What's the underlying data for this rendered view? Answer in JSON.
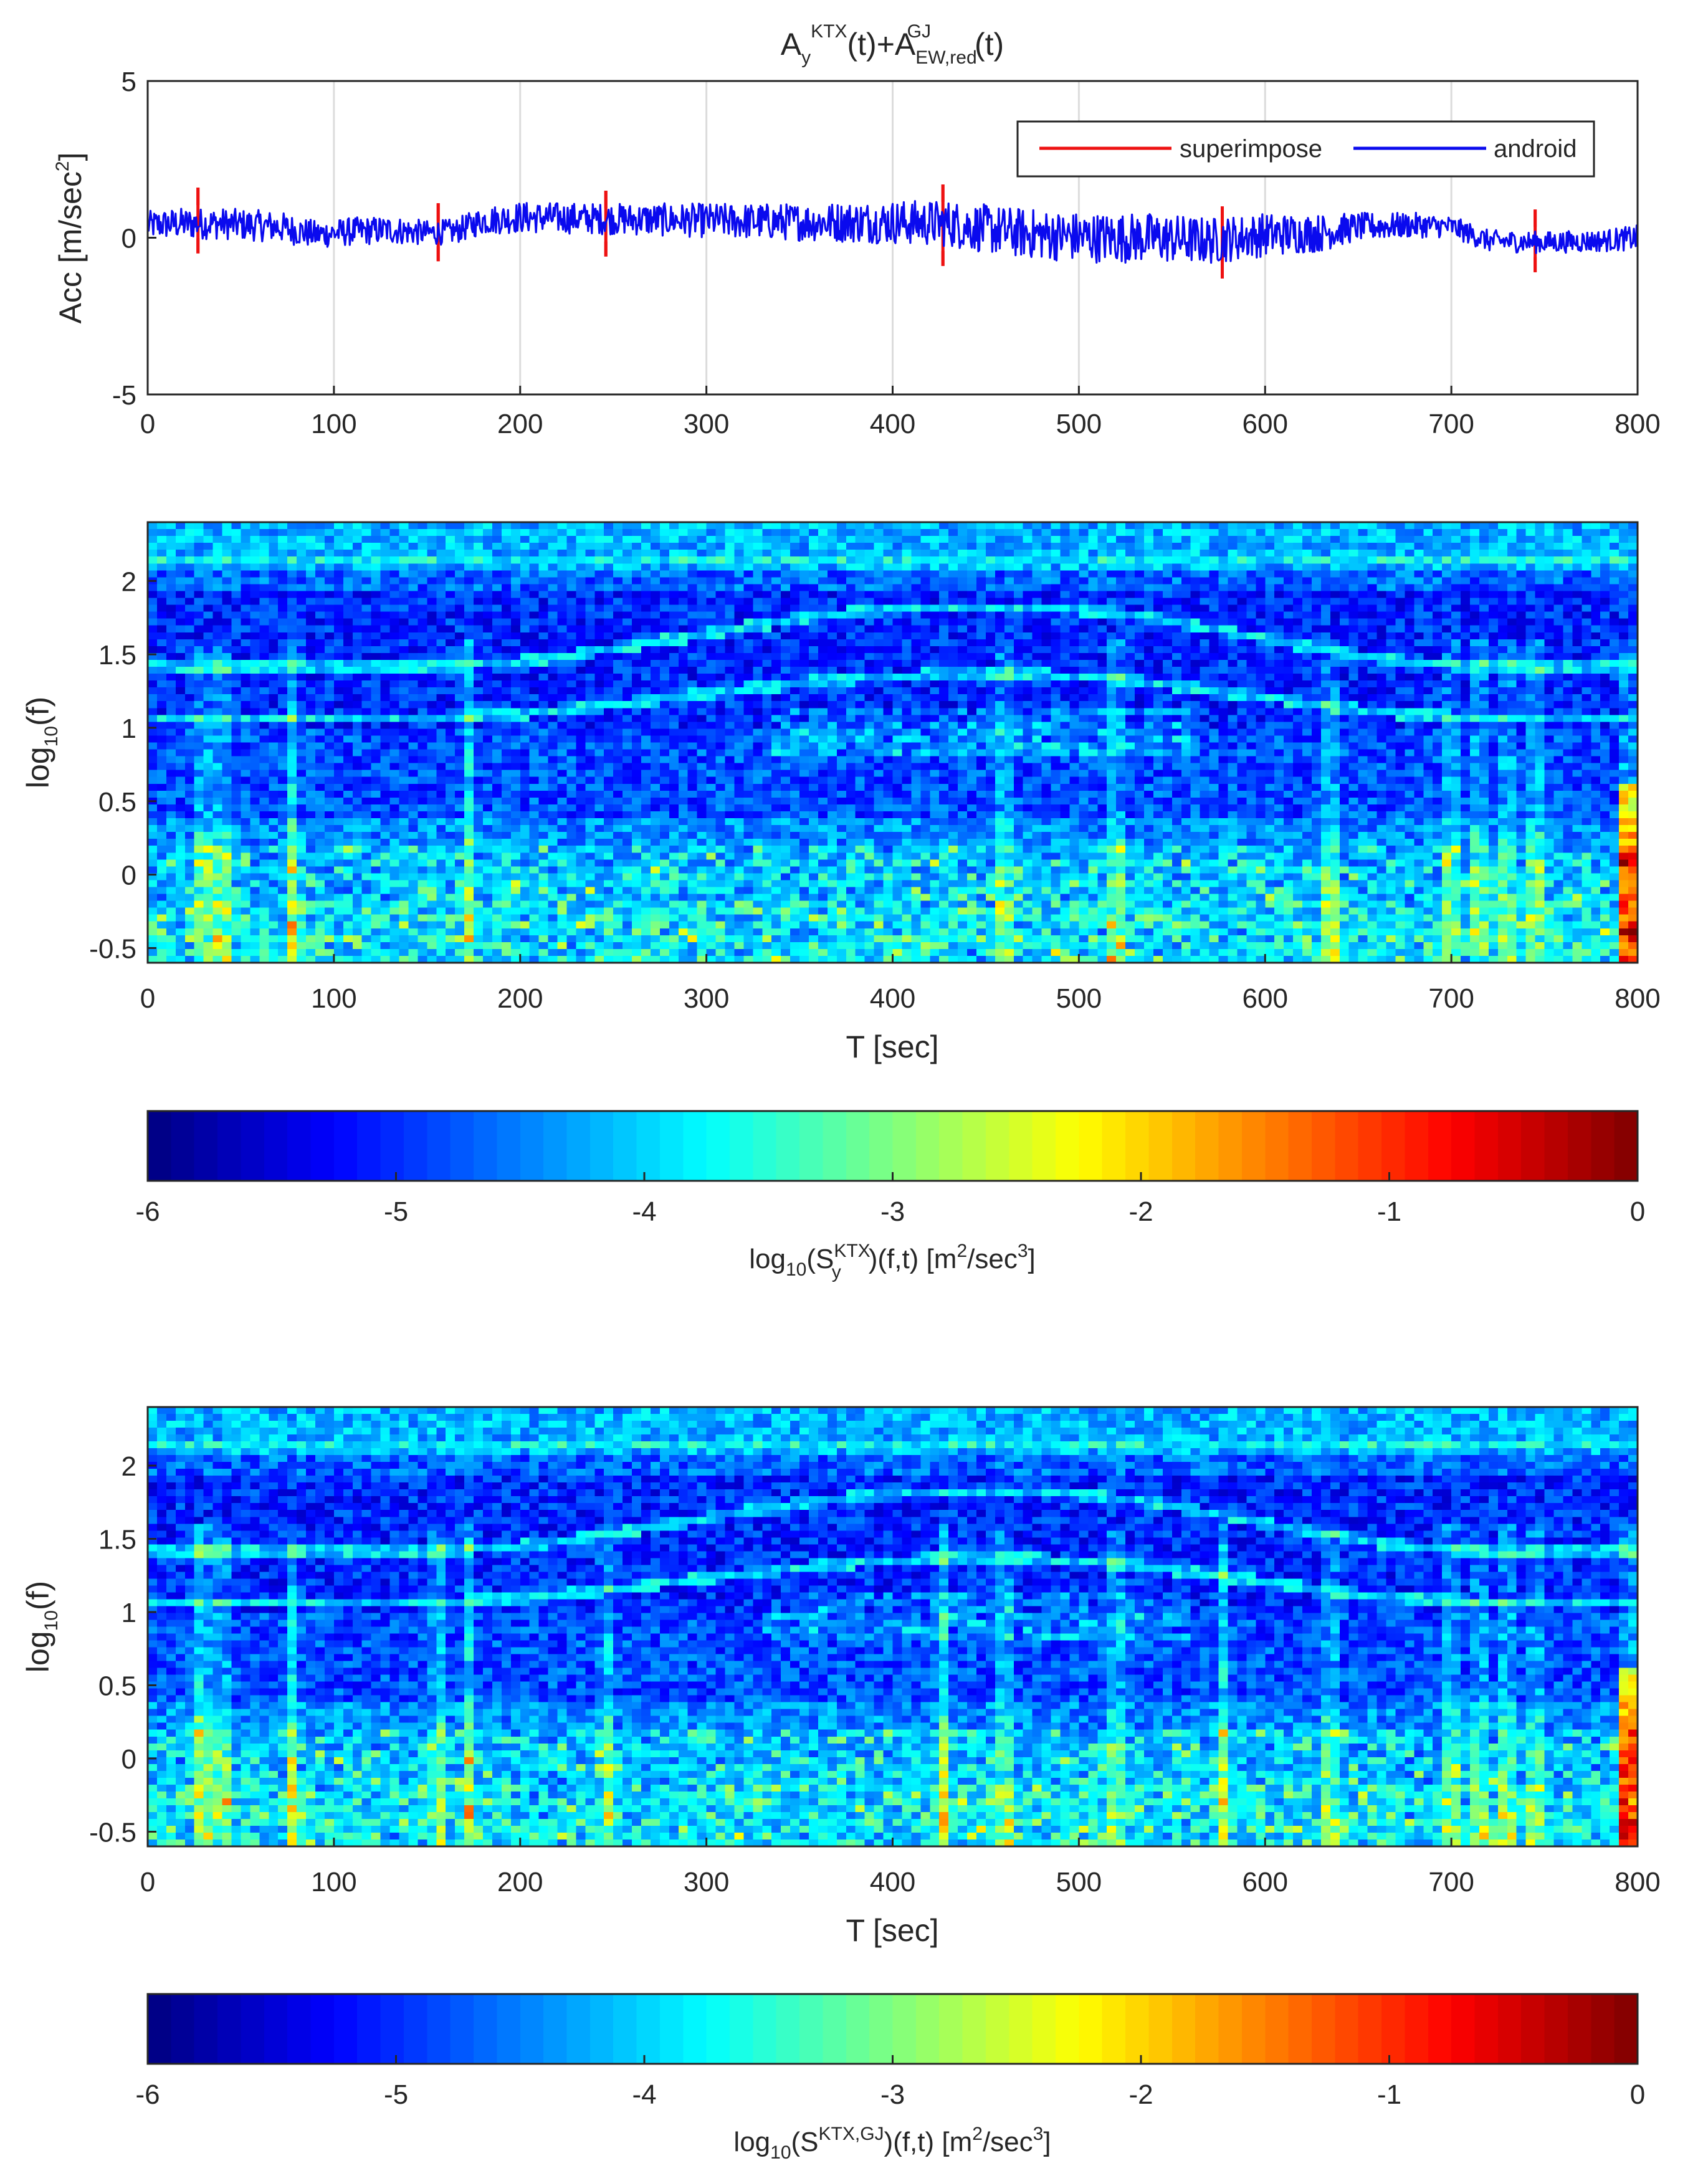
{
  "chart_data": [
    {
      "type": "line",
      "title": {
        "base1": "A",
        "sub1": "y",
        "sup1": "KTX",
        "mid": "(t)+A",
        "sub2": "EW,red",
        "sup2": "GJ",
        "tail": "(t)"
      },
      "ylabel": {
        "main": "Acc [m/sec",
        "sup": "2",
        "end": "]"
      },
      "xlim": [
        0,
        800
      ],
      "ylim": [
        -5,
        5
      ],
      "xticks": [
        "0",
        "100",
        "200",
        "300",
        "400",
        "500",
        "600",
        "700",
        "800"
      ],
      "yticks": [
        "-5",
        "0",
        "5"
      ],
      "grid": "vertical",
      "legend_position": "top-right",
      "series": [
        {
          "name": "superimpose",
          "color": "#ee1111",
          "spikes": [
            {
              "t": 27,
              "up": 1.6,
              "down": -0.5
            },
            {
              "t": 156,
              "up": 1.1,
              "down": -0.75
            },
            {
              "t": 246,
              "up": 1.5,
              "down": -0.6
            },
            {
              "t": 427,
              "up": 1.7,
              "down": -0.9
            },
            {
              "t": 577,
              "up": 1.0,
              "down": -1.3
            },
            {
              "t": 745,
              "up": 0.9,
              "down": -1.1
            }
          ]
        },
        {
          "name": "android",
          "color": "#0a0aee",
          "envelope": {
            "t": [
              0,
              15,
              40,
              70,
              90,
              110,
              130,
              150,
              165,
              180,
              200,
              250,
              300,
              350,
              400,
              430,
              460,
              490,
              510,
              540,
              570,
              600,
              630,
              650,
              680,
              700,
              720,
              750,
              780,
              800
            ],
            "mean": [
              0.4,
              0.45,
              0.45,
              0.35,
              0.1,
              0.2,
              0.25,
              0.15,
              0.2,
              0.55,
              0.65,
              0.6,
              0.55,
              0.5,
              0.5,
              0.45,
              0.2,
              0.05,
              0.0,
              0.0,
              -0.1,
              0.1,
              0.15,
              0.35,
              0.4,
              0.35,
              -0.1,
              -0.15,
              -0.1,
              0.0
            ],
            "half": [
              0.45,
              0.5,
              0.5,
              0.5,
              0.45,
              0.45,
              0.45,
              0.4,
              0.4,
              0.45,
              0.5,
              0.5,
              0.55,
              0.6,
              0.7,
              0.75,
              0.8,
              0.8,
              0.8,
              0.8,
              0.75,
              0.7,
              0.6,
              0.45,
              0.4,
              0.35,
              0.35,
              0.35,
              0.35,
              0.4
            ]
          }
        }
      ]
    },
    {
      "type": "heatmap",
      "xlabel": "T [sec]",
      "ylabel": {
        "main": "log",
        "sub": "10",
        "end": "(f)"
      },
      "xlim": [
        0,
        800
      ],
      "ylim": [
        -0.6,
        2.4
      ],
      "xticks": [
        "0",
        "100",
        "200",
        "300",
        "400",
        "500",
        "600",
        "700",
        "800"
      ],
      "yticks": [
        "-0.5",
        "0",
        "0.5",
        "1",
        "1.5",
        "2"
      ],
      "colormap": "jet",
      "clim": [
        -6,
        0
      ],
      "colorbar_ticks": [
        "-6",
        "-5",
        "-4",
        "-3",
        "-2",
        "-1",
        "0"
      ],
      "colorbar_label": {
        "pre": "log",
        "sub1": "10",
        "mid": "(S",
        "sup": "KTX",
        "sub2": "y",
        "post": ")(f,t) [m",
        "sup2": "2",
        "post2": "/sec",
        "sup3": "3",
        "end": "]"
      },
      "vertical_streaks_t": [
        30,
        40,
        78,
        172,
        460,
        520,
        635,
        700,
        715,
        730,
        745,
        795
      ],
      "harmonic_bands": [
        {
          "start": 1.07,
          "end": 1.07,
          "peak": 1.36
        },
        {
          "start": 1.42,
          "end": 1.42,
          "peak": 1.82
        }
      ]
    },
    {
      "type": "heatmap",
      "xlabel": "T [sec]",
      "ylabel": {
        "main": "log",
        "sub": "10",
        "end": "(f)"
      },
      "xlim": [
        0,
        800
      ],
      "ylim": [
        -0.6,
        2.4
      ],
      "xticks": [
        "0",
        "100",
        "200",
        "300",
        "400",
        "500",
        "600",
        "700",
        "800"
      ],
      "yticks": [
        "-0.5",
        "0",
        "0.5",
        "1",
        "1.5",
        "2"
      ],
      "colormap": "jet",
      "clim": [
        -6,
        0
      ],
      "colorbar_ticks": [
        "-6",
        "-5",
        "-4",
        "-3",
        "-2",
        "-1",
        "0"
      ],
      "colorbar_label": {
        "pre": "log",
        "sub1": "10",
        "mid": "(S",
        "sup": "KTX,GJ",
        "sub2": "",
        "post": ")(f,t) [m",
        "sup2": "2",
        "post2": "/sec",
        "sup3": "3",
        "end": "]"
      },
      "vertical_streaks_t": [
        27,
        30,
        40,
        78,
        156,
        172,
        246,
        427,
        460,
        520,
        577,
        635,
        700,
        715,
        730,
        745,
        795
      ],
      "harmonic_bands": [
        {
          "start": 1.07,
          "end": 1.07,
          "peak": 1.36
        },
        {
          "start": 1.42,
          "end": 1.42,
          "peak": 1.82
        }
      ]
    }
  ]
}
